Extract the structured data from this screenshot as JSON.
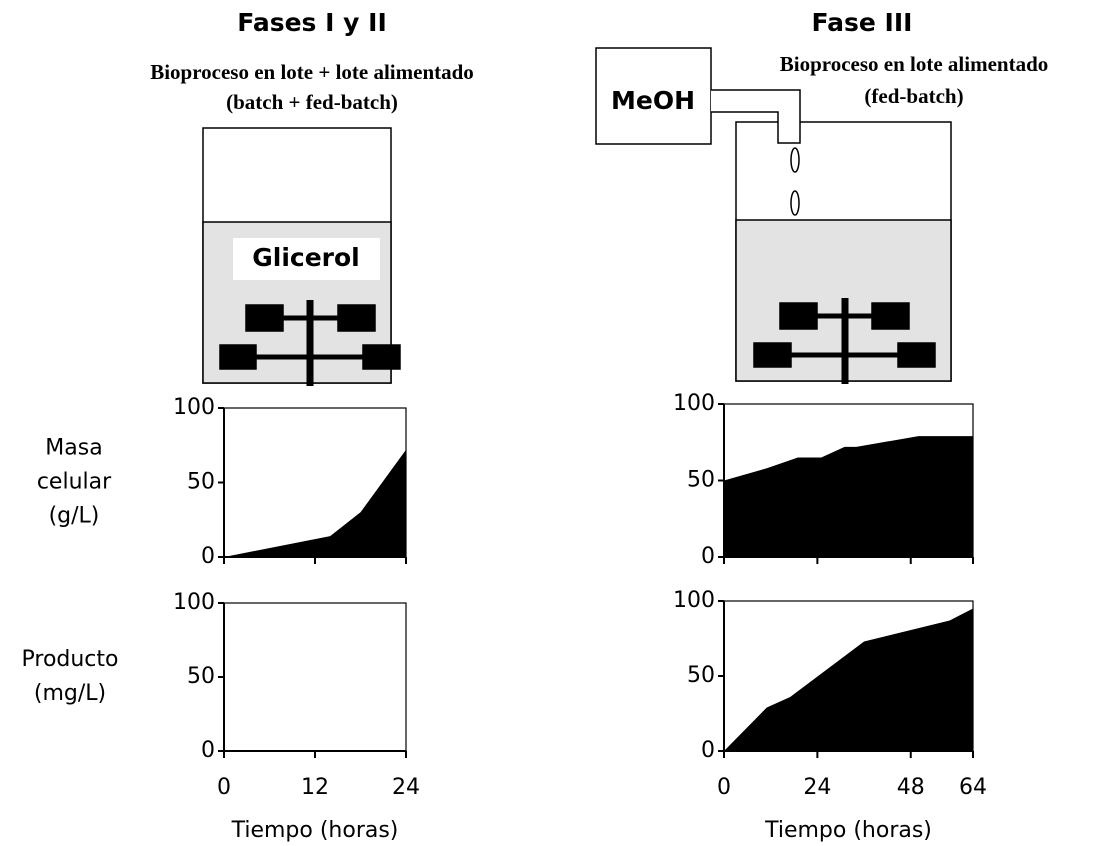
{
  "phases": [
    {
      "title": "Fases I y II",
      "subtitle": [
        "Bioproceso en lote + lote alimentado",
        "(batch + fed-batch)"
      ],
      "medium": "Glicerol"
    },
    {
      "title": "Fase III",
      "subtitle": [
        "Bioproceso en lote alimentado",
        "(fed-batch)"
      ],
      "feed": "MeOH"
    }
  ],
  "chart_data": [
    {
      "type": "area",
      "x": [
        0,
        14,
        18,
        24
      ],
      "values": [
        0,
        14,
        30,
        72
      ],
      "color": "#000000",
      "xlim": [
        0,
        24
      ],
      "xticks": [
        0,
        12,
        24
      ],
      "ylim": [
        0,
        100
      ],
      "yticks": [
        0,
        50,
        100
      ],
      "ylabel": [
        "Masa",
        "celular",
        "(g/L)"
      ],
      "xtick_labels": false
    },
    {
      "type": "area",
      "x": [
        0,
        11,
        19,
        25,
        31,
        34,
        50,
        64
      ],
      "values": [
        50,
        58,
        65,
        65,
        72,
        72,
        79,
        79
      ],
      "color": "#000000",
      "xlim": [
        0,
        64
      ],
      "xticks": [
        0,
        24,
        48,
        64
      ],
      "ylim": [
        0,
        100
      ],
      "yticks": [
        0,
        50,
        100
      ],
      "xtick_labels": false
    },
    {
      "type": "area",
      "x": [],
      "values": [],
      "color": "#000000",
      "xlim": [
        0,
        24
      ],
      "xticks": [
        0,
        12,
        24
      ],
      "ylim": [
        0,
        100
      ],
      "yticks": [
        0,
        50,
        100
      ],
      "ylabel": [
        "Producto",
        "(mg/L)"
      ],
      "xlabel": "Tiempo (horas)",
      "xtick_labels": true
    },
    {
      "type": "area",
      "x": [
        0,
        11,
        17,
        36,
        58,
        64
      ],
      "values": [
        0,
        29,
        36,
        73,
        87,
        95
      ],
      "color": "#000000",
      "xlim": [
        0,
        64
      ],
      "xticks": [
        0,
        24,
        48,
        64
      ],
      "ylim": [
        0,
        100
      ],
      "yticks": [
        0,
        50,
        100
      ],
      "xlabel": "Tiempo (horas)",
      "xtick_labels": true
    }
  ]
}
